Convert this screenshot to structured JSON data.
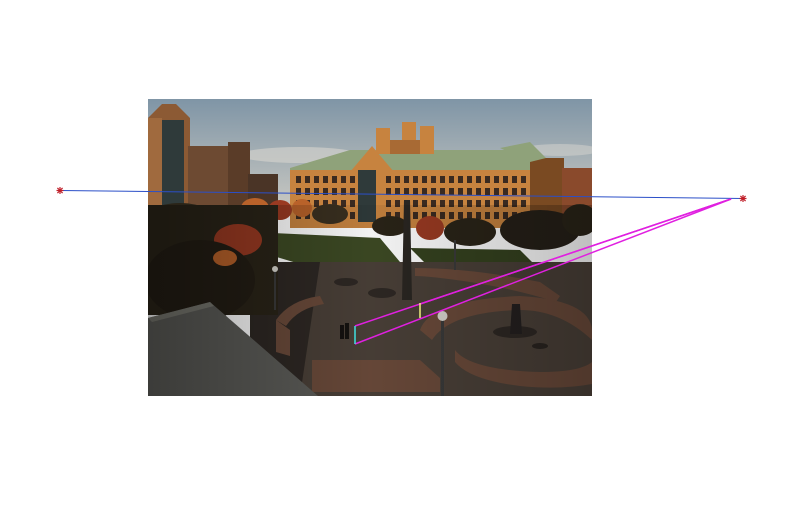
{
  "figure": {
    "background": "#ffffff",
    "photo": {
      "subject": "campus-scene",
      "colors": {
        "sky_top": "#7f95a6",
        "sky_bottom": "#c9c8c2",
        "building_brick": "#c7833f",
        "building_brick_shadow": "#7a4a22",
        "roof": "#8fa27a",
        "windows": "#3a2a20",
        "tower": "#8c5a34",
        "tower_glass": "#2f3a3a",
        "left_building": "#6d4a32",
        "trees_dark": "#2a2418",
        "trees_red": "#9a3a22",
        "trees_orange": "#b9622a",
        "lawn": "#3d4a24",
        "plaza": "#4a4038",
        "plaza_dark": "#2e2824",
        "wall": "#6a4a3a",
        "roof_gray": "#5c5c58",
        "shadow": "#1c1814"
      }
    },
    "overlay": {
      "horizon_color": "#2b4fc8",
      "vanishing_marker_color": "#c0202a",
      "ray_color": "#e020e0",
      "segment_left_color": "#40e0e0",
      "segment_right_color": "#f0f080",
      "segment_base_color": "#ffffff"
    }
  }
}
